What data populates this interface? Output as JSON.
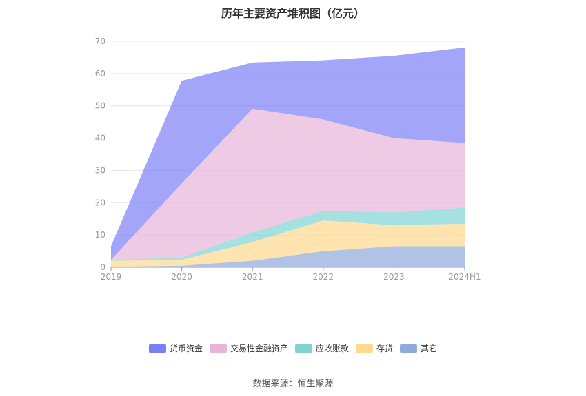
{
  "title": "历年主要资产堆积图（亿元）",
  "source": "数据来源：恒生聚源",
  "chart_data": {
    "type": "area",
    "stacked": true,
    "title": "历年主要资产堆积图（亿元）",
    "categories": [
      "2019",
      "2020",
      "2021",
      "2022",
      "2023",
      "2024H1"
    ],
    "ylim": [
      0,
      70
    ],
    "yticks": [
      0,
      10,
      20,
      30,
      40,
      50,
      60,
      70
    ],
    "grid": true,
    "legend_position": "bottom",
    "series": [
      {
        "name": "其它",
        "color": "#8faadc",
        "values": [
          0.2,
          0.5,
          2.0,
          5.0,
          6.5,
          6.5
        ]
      },
      {
        "name": "存货",
        "color": "#ffd98f",
        "values": [
          1.8,
          1.8,
          5.8,
          9.5,
          6.5,
          7.0
        ]
      },
      {
        "name": "应收账款",
        "color": "#7fd4d4",
        "values": [
          0.3,
          0.7,
          3.0,
          3.0,
          4.0,
          5.0
        ]
      },
      {
        "name": "交易性金融资产",
        "color": "#e8b4d8",
        "values": [
          0.0,
          23.0,
          38.3,
          28.3,
          23.0,
          20.0
        ]
      },
      {
        "name": "货币资金",
        "color": "#7b7ff5",
        "values": [
          4.2,
          31.8,
          14.3,
          18.3,
          25.5,
          29.6
        ]
      }
    ]
  }
}
